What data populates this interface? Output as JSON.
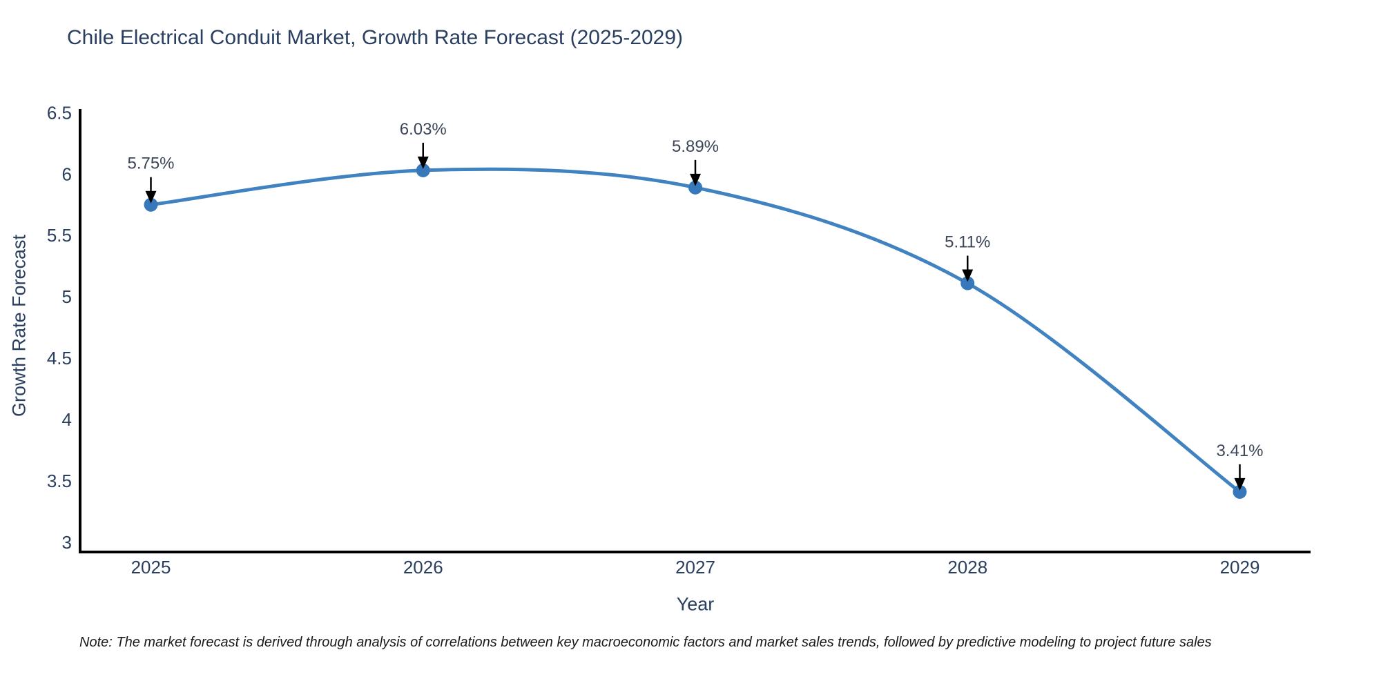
{
  "note": "Note: The market forecast is derived through analysis of correlations between key macroeconomic factors and market sales trends, followed by predictive modeling to project future sales",
  "chart_data": {
    "type": "line",
    "title": "Chile Electrical Conduit Market, Growth Rate Forecast (2025-2029)",
    "xlabel": "Year",
    "ylabel": "Growth Rate Forecast",
    "x": [
      2025,
      2026,
      2027,
      2028,
      2029
    ],
    "series": [
      {
        "name": "Growth Rate Forecast",
        "values": [
          5.75,
          6.03,
          5.89,
          5.11,
          3.41
        ],
        "point_labels": [
          "5.75%",
          "6.03%",
          "5.89%",
          "5.11%",
          "3.41%"
        ]
      }
    ],
    "xticks": [
      "2025",
      "2026",
      "2027",
      "2028",
      "2029"
    ],
    "yticks": [
      "6.5",
      "6",
      "5.5",
      "5",
      "4.5",
      "4",
      "3.5",
      "3"
    ],
    "ytick_values": [
      6.5,
      6,
      5.5,
      5,
      4.5,
      4,
      3.5,
      3
    ],
    "xlim": [
      2024.74,
      2029.26
    ],
    "ylim": [
      2.92,
      6.53
    ],
    "grid": false,
    "legend": false,
    "line_shape": "spline",
    "colors": {
      "line": "#4083c0",
      "marker": "#3678b9",
      "arrow": "#000000",
      "axis": "#000000",
      "tick_text": "#2a3f5f",
      "annotation_text": "#3c4657"
    }
  }
}
